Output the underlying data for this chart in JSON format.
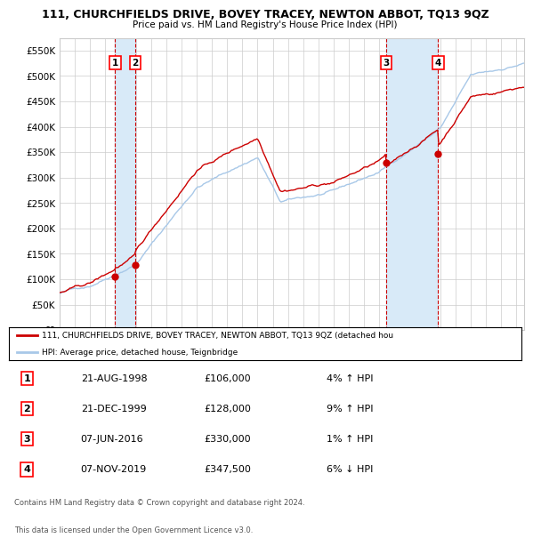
{
  "title": "111, CHURCHFIELDS DRIVE, BOVEY TRACEY, NEWTON ABBOT, TQ13 9QZ",
  "subtitle": "Price paid vs. HM Land Registry's House Price Index (HPI)",
  "legend_line1": "111, CHURCHFIELDS DRIVE, BOVEY TRACEY, NEWTON ABBOT, TQ13 9QZ (detached hou",
  "legend_line2": "HPI: Average price, detached house, Teignbridge",
  "footer1": "Contains HM Land Registry data © Crown copyright and database right 2024.",
  "footer2": "This data is licensed under the Open Government Licence v3.0.",
  "hpi_color": "#a8c8e8",
  "price_color": "#cc0000",
  "dot_color": "#cc0000",
  "vline_color": "#cc0000",
  "vband_color": "#d8eaf8",
  "ylim": [
    0,
    575000
  ],
  "yticks": [
    0,
    50000,
    100000,
    150000,
    200000,
    250000,
    300000,
    350000,
    400000,
    450000,
    500000,
    550000
  ],
  "transactions": [
    {
      "label": "1",
      "date_num": 1998.643,
      "price": 106000
    },
    {
      "label": "2",
      "date_num": 1999.972,
      "price": 128000
    },
    {
      "label": "3",
      "date_num": 2016.431,
      "price": 330000
    },
    {
      "label": "4",
      "date_num": 2019.847,
      "price": 347500
    }
  ],
  "table_rows": [
    {
      "num": "1",
      "date": "21-AUG-1998",
      "price": "£106,000",
      "hpi": "4% ↑ HPI"
    },
    {
      "num": "2",
      "date": "21-DEC-1999",
      "price": "£128,000",
      "hpi": "9% ↑ HPI"
    },
    {
      "num": "3",
      "date": "07-JUN-2016",
      "price": "£330,000",
      "hpi": "1% ↑ HPI"
    },
    {
      "num": "4",
      "date": "07-NOV-2019",
      "price": "£347,500",
      "hpi": "6% ↓ HPI"
    }
  ]
}
